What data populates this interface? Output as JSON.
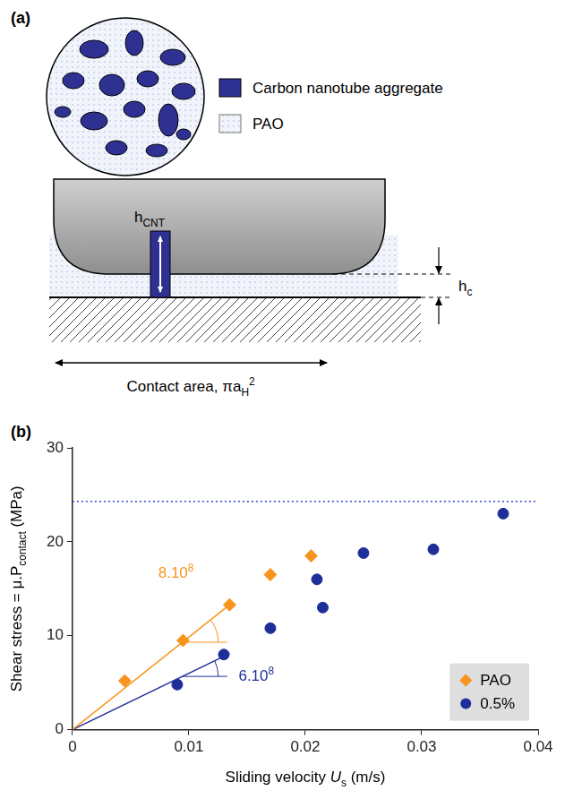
{
  "panel_a": {
    "label": "(a)",
    "legend": [
      {
        "name": "Carbon nanotube aggregate",
        "color": "#2e3192"
      },
      {
        "name": "PAO",
        "color": "#c9d3ea"
      }
    ],
    "h_cnt": [
      {
        "text": "h"
      },
      {
        "sub": "CNT"
      }
    ],
    "h_c": [
      {
        "text": "h"
      },
      {
        "sub": "c"
      }
    ],
    "contact_area": [
      {
        "text": "Contact area, πa"
      },
      {
        "sub": "H"
      },
      {
        "sup": "2"
      }
    ]
  },
  "chart_data": {
    "type": "scatter",
    "label": "(b)",
    "y_title": [
      {
        "text": "Shear stress = μ.P"
      },
      {
        "sub": "contact"
      },
      {
        "text": " (MPa)"
      }
    ],
    "x_title": [
      {
        "text": "Sliding velocity "
      },
      {
        "text": "U",
        "italic": true
      },
      {
        "sub": "s"
      },
      {
        "text": " (m/s)"
      }
    ],
    "xlim": [
      0,
      0.04
    ],
    "xticks": [
      0,
      0.01,
      0.02,
      0.03,
      0.04
    ],
    "ylim": [
      0,
      30
    ],
    "yticks": [
      0,
      10,
      20,
      30
    ],
    "grid": false,
    "legend": "lower right",
    "series": [
      {
        "name": "PAO",
        "color": "#f7941d",
        "marker": "diamond",
        "x": [
          0.0045,
          0.0095,
          0.0135,
          0.017,
          0.0205
        ],
        "values": [
          5.2,
          9.5,
          13.3,
          16.5,
          18.5
        ]
      },
      {
        "name": "0.5%",
        "color": "#1f2f99",
        "marker": "circle",
        "x": [
          0.009,
          0.013,
          0.017,
          0.021,
          0.0215,
          0.025,
          0.031,
          0.037
        ],
        "values": [
          4.8,
          8.0,
          10.8,
          16.0,
          13.0,
          18.8,
          19.2,
          23.0
        ]
      }
    ],
    "annotations": [
      {
        "parts": [
          {
            "text": "8.10"
          },
          {
            "sup": "8"
          }
        ],
        "color": "#f7941d",
        "x": [
          0,
          0.0135
        ],
        "y": [
          0,
          13.3
        ]
      },
      {
        "parts": [
          {
            "text": "6.10"
          },
          {
            "sup": "8"
          }
        ],
        "color": "#1f2f99",
        "x": [
          0,
          0.0135
        ],
        "y": [
          0,
          8.1
        ]
      }
    ],
    "reference_line": {
      "y": 24.3,
      "color": "#3344cc",
      "line_style": "dotted"
    }
  }
}
